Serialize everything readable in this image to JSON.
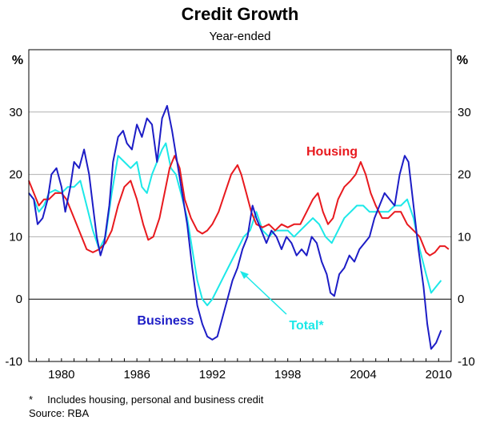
{
  "chart_data": {
    "type": "line",
    "title": "Credit Growth",
    "subtitle": "Year-ended",
    "y_unit_left": "%",
    "y_unit_right": "%",
    "xlim": [
      1977.4,
      2011.0
    ],
    "ylim": [
      -10,
      40
    ],
    "y_ticks": [
      -10,
      0,
      10,
      20,
      30
    ],
    "x_ticks": [
      1980,
      1986,
      1992,
      1998,
      2004,
      2010
    ],
    "grid": "horizontal",
    "series": [
      {
        "name": "Housing",
        "color": "#e8191e",
        "points": [
          [
            1977.4,
            19
          ],
          [
            1977.8,
            17
          ],
          [
            1978.2,
            15
          ],
          [
            1978.6,
            16
          ],
          [
            1979.0,
            16
          ],
          [
            1979.5,
            17
          ],
          [
            1980.0,
            17
          ],
          [
            1980.4,
            16
          ],
          [
            1980.8,
            14
          ],
          [
            1981.2,
            12
          ],
          [
            1981.6,
            10
          ],
          [
            1982.0,
            8
          ],
          [
            1982.5,
            7.5
          ],
          [
            1983.0,
            8
          ],
          [
            1983.5,
            9
          ],
          [
            1984.0,
            11
          ],
          [
            1984.5,
            15
          ],
          [
            1985.0,
            18
          ],
          [
            1985.5,
            19
          ],
          [
            1986.0,
            16
          ],
          [
            1986.5,
            12
          ],
          [
            1986.9,
            9.5
          ],
          [
            1987.3,
            10
          ],
          [
            1987.8,
            13
          ],
          [
            1988.2,
            17
          ],
          [
            1988.6,
            21
          ],
          [
            1989.0,
            23
          ],
          [
            1989.4,
            21
          ],
          [
            1989.8,
            16
          ],
          [
            1990.3,
            13
          ],
          [
            1990.8,
            11
          ],
          [
            1991.2,
            10.5
          ],
          [
            1991.6,
            11
          ],
          [
            1992.0,
            12
          ],
          [
            1992.5,
            14
          ],
          [
            1993.0,
            17
          ],
          [
            1993.5,
            20
          ],
          [
            1994.0,
            21.5
          ],
          [
            1994.3,
            20
          ],
          [
            1994.7,
            17
          ],
          [
            1995.1,
            14
          ],
          [
            1995.5,
            12
          ],
          [
            1996.0,
            11.5
          ],
          [
            1996.5,
            12
          ],
          [
            1997.0,
            11
          ],
          [
            1997.5,
            12
          ],
          [
            1998.0,
            11.5
          ],
          [
            1998.5,
            12
          ],
          [
            1999.0,
            12
          ],
          [
            1999.5,
            14
          ],
          [
            2000.0,
            16
          ],
          [
            2000.4,
            17
          ],
          [
            2000.8,
            14
          ],
          [
            2001.2,
            12
          ],
          [
            2001.6,
            13
          ],
          [
            2002.0,
            16
          ],
          [
            2002.5,
            18
          ],
          [
            2003.0,
            19
          ],
          [
            2003.4,
            20
          ],
          [
            2003.8,
            22
          ],
          [
            2004.2,
            20
          ],
          [
            2004.6,
            17
          ],
          [
            2005.0,
            15
          ],
          [
            2005.5,
            13
          ],
          [
            2006.0,
            13
          ],
          [
            2006.5,
            14
          ],
          [
            2007.0,
            14
          ],
          [
            2007.5,
            12
          ],
          [
            2008.0,
            11
          ],
          [
            2008.5,
            10
          ],
          [
            2009.0,
            7.5
          ],
          [
            2009.3,
            7
          ],
          [
            2009.7,
            7.5
          ],
          [
            2010.1,
            8.5
          ],
          [
            2010.5,
            8.5
          ],
          [
            2010.8,
            8
          ]
        ]
      },
      {
        "name": "Business",
        "color": "#1d1dc6",
        "points": [
          [
            1977.4,
            17
          ],
          [
            1977.8,
            16
          ],
          [
            1978.1,
            12
          ],
          [
            1978.5,
            13
          ],
          [
            1978.9,
            16
          ],
          [
            1979.2,
            20
          ],
          [
            1979.6,
            21
          ],
          [
            1980.0,
            18
          ],
          [
            1980.3,
            14
          ],
          [
            1980.7,
            18
          ],
          [
            1981.0,
            22
          ],
          [
            1981.4,
            21
          ],
          [
            1981.8,
            24
          ],
          [
            1982.2,
            20
          ],
          [
            1982.5,
            15
          ],
          [
            1982.8,
            10
          ],
          [
            1983.1,
            7
          ],
          [
            1983.4,
            9
          ],
          [
            1983.8,
            15
          ],
          [
            1984.1,
            22
          ],
          [
            1984.5,
            26
          ],
          [
            1984.9,
            27
          ],
          [
            1985.2,
            25
          ],
          [
            1985.6,
            24
          ],
          [
            1986.0,
            28
          ],
          [
            1986.4,
            26
          ],
          [
            1986.8,
            29
          ],
          [
            1987.2,
            28
          ],
          [
            1987.6,
            22
          ],
          [
            1988.0,
            29
          ],
          [
            1988.4,
            31
          ],
          [
            1988.8,
            27
          ],
          [
            1989.2,
            22
          ],
          [
            1989.6,
            17
          ],
          [
            1990.0,
            12
          ],
          [
            1990.4,
            5
          ],
          [
            1990.8,
            -1
          ],
          [
            1991.2,
            -4
          ],
          [
            1991.6,
            -6
          ],
          [
            1992.0,
            -6.5
          ],
          [
            1992.4,
            -6
          ],
          [
            1992.8,
            -3
          ],
          [
            1993.2,
            0
          ],
          [
            1993.6,
            3
          ],
          [
            1994.0,
            5
          ],
          [
            1994.4,
            8
          ],
          [
            1994.8,
            10
          ],
          [
            1995.2,
            15
          ],
          [
            1995.5,
            13
          ],
          [
            1995.9,
            11
          ],
          [
            1996.3,
            9
          ],
          [
            1996.7,
            11
          ],
          [
            1997.1,
            10
          ],
          [
            1997.5,
            8
          ],
          [
            1997.9,
            10
          ],
          [
            1998.3,
            9
          ],
          [
            1998.7,
            7
          ],
          [
            1999.1,
            8
          ],
          [
            1999.5,
            7
          ],
          [
            1999.9,
            10
          ],
          [
            2000.3,
            9
          ],
          [
            2000.7,
            6
          ],
          [
            2001.1,
            4
          ],
          [
            2001.4,
            1
          ],
          [
            2001.7,
            0.5
          ],
          [
            2002.1,
            4
          ],
          [
            2002.5,
            5
          ],
          [
            2002.9,
            7
          ],
          [
            2003.3,
            6
          ],
          [
            2003.7,
            8
          ],
          [
            2004.1,
            9
          ],
          [
            2004.5,
            10
          ],
          [
            2004.9,
            13
          ],
          [
            2005.3,
            15
          ],
          [
            2005.7,
            17
          ],
          [
            2006.1,
            16
          ],
          [
            2006.5,
            15
          ],
          [
            2006.9,
            20
          ],
          [
            2007.3,
            23
          ],
          [
            2007.6,
            22
          ],
          [
            2008.0,
            15
          ],
          [
            2008.4,
            8
          ],
          [
            2008.8,
            2
          ],
          [
            2009.1,
            -4
          ],
          [
            2009.4,
            -8
          ],
          [
            2009.8,
            -7
          ],
          [
            2010.2,
            -5
          ]
        ]
      },
      {
        "name": "Total*",
        "color": "#1ce8e8",
        "points": [
          [
            1977.4,
            17
          ],
          [
            1977.8,
            16
          ],
          [
            1978.2,
            14
          ],
          [
            1978.6,
            15
          ],
          [
            1979.0,
            17
          ],
          [
            1979.5,
            17.5
          ],
          [
            1980.0,
            17
          ],
          [
            1980.5,
            18
          ],
          [
            1981.0,
            18
          ],
          [
            1981.5,
            19
          ],
          [
            1982.0,
            15
          ],
          [
            1982.5,
            11
          ],
          [
            1983.0,
            8
          ],
          [
            1983.5,
            10
          ],
          [
            1984.0,
            17
          ],
          [
            1984.5,
            23
          ],
          [
            1985.0,
            22
          ],
          [
            1985.5,
            21
          ],
          [
            1986.0,
            22
          ],
          [
            1986.4,
            18
          ],
          [
            1986.8,
            17
          ],
          [
            1987.2,
            20
          ],
          [
            1987.6,
            22
          ],
          [
            1988.0,
            24
          ],
          [
            1988.3,
            25
          ],
          [
            1988.7,
            21
          ],
          [
            1989.1,
            20
          ],
          [
            1989.5,
            17
          ],
          [
            1990.0,
            13
          ],
          [
            1990.4,
            8
          ],
          [
            1990.8,
            3
          ],
          [
            1991.2,
            0
          ],
          [
            1991.6,
            -1
          ],
          [
            1992.0,
            0
          ],
          [
            1992.5,
            2
          ],
          [
            1993.0,
            4
          ],
          [
            1993.5,
            6
          ],
          [
            1994.0,
            8
          ],
          [
            1994.5,
            10
          ],
          [
            1995.0,
            11
          ],
          [
            1995.5,
            14
          ],
          [
            1996.0,
            11
          ],
          [
            1996.5,
            10
          ],
          [
            1997.0,
            11
          ],
          [
            1997.5,
            11
          ],
          [
            1998.0,
            11
          ],
          [
            1998.5,
            10
          ],
          [
            1999.0,
            11
          ],
          [
            1999.5,
            12
          ],
          [
            2000.0,
            13
          ],
          [
            2000.5,
            12
          ],
          [
            2001.0,
            10
          ],
          [
            2001.5,
            9
          ],
          [
            2002.0,
            11
          ],
          [
            2002.5,
            13
          ],
          [
            2003.0,
            14
          ],
          [
            2003.5,
            15
          ],
          [
            2004.0,
            15
          ],
          [
            2004.5,
            14
          ],
          [
            2005.0,
            14
          ],
          [
            2005.5,
            14
          ],
          [
            2006.0,
            14
          ],
          [
            2006.5,
            15
          ],
          [
            2007.0,
            15
          ],
          [
            2007.5,
            16
          ],
          [
            2008.0,
            13
          ],
          [
            2008.5,
            8
          ],
          [
            2009.0,
            4
          ],
          [
            2009.4,
            1
          ],
          [
            2009.8,
            2
          ],
          [
            2010.2,
            3
          ]
        ]
      }
    ],
    "labels": {
      "housing": "Housing",
      "business": "Business",
      "total": "Total*"
    },
    "footnote": "*     Includes housing, personal and business credit",
    "source": "Source: RBA"
  }
}
